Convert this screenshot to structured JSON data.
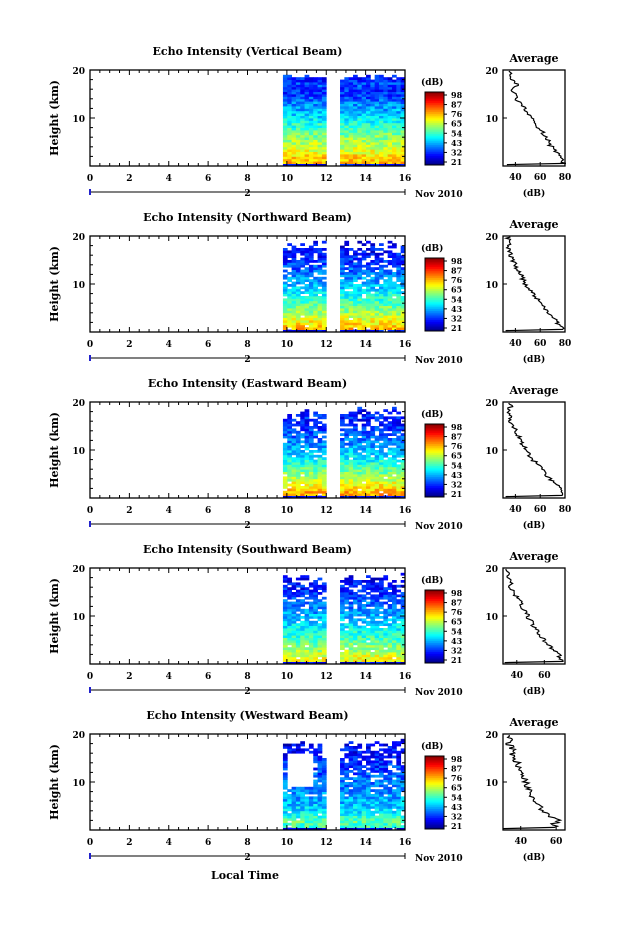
{
  "chart_data": [
    {
      "type": "heatmap",
      "title": "Echo Intensity (Vertical Beam)",
      "ylabel": "Height (km)",
      "x_ticks": [
        "0",
        "2",
        "4",
        "6",
        "8",
        "10",
        "12",
        "14",
        "16"
      ],
      "y_ticks": [
        "20",
        "10"
      ],
      "xlim": [
        0,
        16
      ],
      "ylim": [
        0,
        20
      ],
      "data_segments": [
        [
          9.8,
          11.8
        ],
        [
          12.7,
          16
        ]
      ],
      "date_label": "Nov 2010",
      "date_marker": "2",
      "colorbar": {
        "unit": "(dB)",
        "labels": [
          "98",
          "87",
          "76",
          "65",
          "54",
          "43",
          "32",
          "21"
        ],
        "range": [
          21,
          98
        ]
      },
      "average": {
        "title": "Average",
        "xlabel": "(dB)",
        "x_ticks": [
          "40",
          "60",
          "80"
        ],
        "y_ticks": [
          "20",
          "10"
        ],
        "xlim": [
          30,
          80
        ],
        "ylim": [
          0,
          20
        ],
        "profile": [
          [
            79,
            0.5
          ],
          [
            77,
            1
          ],
          [
            76,
            2
          ],
          [
            72,
            3
          ],
          [
            69,
            4
          ],
          [
            67,
            5
          ],
          [
            64,
            6
          ],
          [
            62,
            7
          ],
          [
            58,
            8
          ],
          [
            56,
            9
          ],
          [
            52,
            10
          ],
          [
            49,
            11
          ],
          [
            47,
            12
          ],
          [
            45,
            13
          ],
          [
            41,
            14
          ],
          [
            39,
            15
          ],
          [
            38,
            16
          ],
          [
            41,
            17
          ],
          [
            36,
            18
          ],
          [
            37,
            19
          ],
          [
            35,
            20
          ]
        ]
      }
    },
    {
      "type": "heatmap",
      "title": "Echo Intensity (Northward Beam)",
      "ylabel": "Height (km)",
      "x_ticks": [
        "0",
        "2",
        "4",
        "6",
        "8",
        "10",
        "12",
        "14",
        "16"
      ],
      "y_ticks": [
        "20",
        "10"
      ],
      "xlim": [
        0,
        16
      ],
      "ylim": [
        0,
        20
      ],
      "data_segments": [
        [
          9.8,
          11.8
        ],
        [
          12.7,
          16
        ]
      ],
      "date_label": "Nov 2010",
      "date_marker": "2",
      "colorbar": {
        "unit": "(dB)",
        "labels": [
          "98",
          "87",
          "76",
          "65",
          "54",
          "43",
          "32",
          "21"
        ],
        "range": [
          21,
          98
        ]
      },
      "average": {
        "title": "Average",
        "xlabel": "(dB)",
        "x_ticks": [
          "40",
          "60",
          "80"
        ],
        "y_ticks": [
          "20",
          "10"
        ],
        "xlim": [
          30,
          80
        ],
        "ylim": [
          0,
          20
        ],
        "profile": [
          [
            80,
            0.5
          ],
          [
            77,
            1
          ],
          [
            74,
            2
          ],
          [
            70,
            3
          ],
          [
            66,
            4
          ],
          [
            63,
            5
          ],
          [
            60,
            6
          ],
          [
            57,
            7
          ],
          [
            54,
            8
          ],
          [
            51,
            9
          ],
          [
            48,
            10
          ],
          [
            46,
            11
          ],
          [
            44,
            12
          ],
          [
            42,
            13
          ],
          [
            40,
            14
          ],
          [
            38,
            15
          ],
          [
            36,
            16
          ],
          [
            35,
            17
          ],
          [
            34,
            18
          ],
          [
            35,
            19
          ],
          [
            34,
            20
          ]
        ]
      }
    },
    {
      "type": "heatmap",
      "title": "Echo Intensity (Eastward Beam)",
      "ylabel": "Height (km)",
      "x_ticks": [
        "0",
        "2",
        "4",
        "6",
        "8",
        "10",
        "12",
        "14",
        "16"
      ],
      "y_ticks": [
        "20",
        "10"
      ],
      "xlim": [
        0,
        16
      ],
      "ylim": [
        0,
        20
      ],
      "data_segments": [
        [
          9.8,
          11.8
        ],
        [
          12.7,
          16
        ]
      ],
      "date_label": "Nov 2010",
      "date_marker": "2",
      "colorbar": {
        "unit": "(dB)",
        "labels": [
          "98",
          "87",
          "76",
          "65",
          "54",
          "43",
          "32",
          "21"
        ],
        "range": [
          21,
          98
        ]
      },
      "average": {
        "title": "Average",
        "xlabel": "(dB)",
        "x_ticks": [
          "40",
          "60",
          "80"
        ],
        "y_ticks": [
          "20",
          "10"
        ],
        "xlim": [
          30,
          80
        ],
        "ylim": [
          0,
          20
        ],
        "profile": [
          [
            79,
            0.5
          ],
          [
            80,
            1
          ],
          [
            76,
            2
          ],
          [
            72,
            3
          ],
          [
            68,
            4
          ],
          [
            64,
            5
          ],
          [
            61,
            6
          ],
          [
            58,
            7
          ],
          [
            54,
            8
          ],
          [
            51,
            9
          ],
          [
            49,
            10
          ],
          [
            46,
            11
          ],
          [
            44,
            12
          ],
          [
            42,
            13
          ],
          [
            40,
            14
          ],
          [
            38,
            15
          ],
          [
            36,
            16
          ],
          [
            37,
            17
          ],
          [
            35,
            18
          ],
          [
            36,
            19
          ],
          [
            34,
            20
          ]
        ]
      }
    },
    {
      "type": "heatmap",
      "title": "Echo Intensity (Southward Beam)",
      "ylabel": "Height (km)",
      "x_ticks": [
        "0",
        "2",
        "4",
        "6",
        "8",
        "10",
        "12",
        "14",
        "16"
      ],
      "y_ticks": [
        "20",
        "10"
      ],
      "xlim": [
        0,
        16
      ],
      "ylim": [
        0,
        20
      ],
      "data_segments": [
        [
          9.8,
          11.8
        ],
        [
          12.7,
          16
        ]
      ],
      "date_label": "Nov 2010",
      "date_marker": "2",
      "colorbar": {
        "unit": "(dB)",
        "labels": [
          "98",
          "87",
          "76",
          "65",
          "54",
          "43",
          "32",
          "21"
        ],
        "range": [
          21,
          98
        ]
      },
      "average": {
        "title": "Average",
        "xlabel": "(dB)",
        "x_ticks": [
          "40",
          "60"
        ],
        "y_ticks": [
          "20",
          "10"
        ],
        "xlim": [
          30,
          75
        ],
        "ylim": [
          0,
          20
        ],
        "profile": [
          [
            75,
            0.5
          ],
          [
            72,
            1
          ],
          [
            70,
            2
          ],
          [
            66,
            3
          ],
          [
            63,
            4
          ],
          [
            60,
            5
          ],
          [
            57,
            6
          ],
          [
            55,
            7
          ],
          [
            52,
            8
          ],
          [
            50,
            9
          ],
          [
            48,
            10
          ],
          [
            46,
            11
          ],
          [
            44,
            12
          ],
          [
            42,
            13
          ],
          [
            40,
            14
          ],
          [
            38,
            15
          ],
          [
            36,
            16
          ],
          [
            36,
            17
          ],
          [
            34,
            18
          ],
          [
            35,
            19
          ],
          [
            33,
            20
          ]
        ]
      }
    },
    {
      "type": "heatmap",
      "title": "Echo Intensity (Westward Beam)",
      "ylabel": "Height (km)",
      "x_ticks": [
        "0",
        "2",
        "4",
        "6",
        "8",
        "10",
        "12",
        "14",
        "16"
      ],
      "y_ticks": [
        "20",
        "10"
      ],
      "xlim": [
        0,
        16
      ],
      "ylim": [
        0,
        20
      ],
      "data_segments": [
        [
          9.8,
          11.8
        ],
        [
          12.7,
          16
        ]
      ],
      "date_label": "Nov 2010",
      "date_marker": "2",
      "colorbar": {
        "unit": "(dB)",
        "labels": [
          "98",
          "87",
          "76",
          "65",
          "54",
          "43",
          "32",
          "21"
        ],
        "range": [
          21,
          98
        ]
      },
      "average": {
        "title": "Average",
        "xlabel": "(dB)",
        "x_ticks": [
          "40",
          "60"
        ],
        "y_ticks": [
          "20",
          "10"
        ],
        "xlim": [
          30,
          65
        ],
        "ylim": [
          0,
          20
        ],
        "profile": [
          [
            60,
            0.5
          ],
          [
            58,
            1
          ],
          [
            61,
            2
          ],
          [
            55,
            3
          ],
          [
            52,
            4
          ],
          [
            50,
            5
          ],
          [
            48,
            6
          ],
          [
            47,
            7
          ],
          [
            45,
            8
          ],
          [
            44,
            9
          ],
          [
            43,
            10
          ],
          [
            42,
            11
          ],
          [
            40,
            12
          ],
          [
            39,
            13
          ],
          [
            38,
            14
          ],
          [
            36,
            15
          ],
          [
            35,
            16
          ],
          [
            35,
            17
          ],
          [
            33,
            18
          ],
          [
            34,
            19
          ],
          [
            32,
            20
          ]
        ]
      }
    }
  ],
  "xlabel": "Local Time"
}
